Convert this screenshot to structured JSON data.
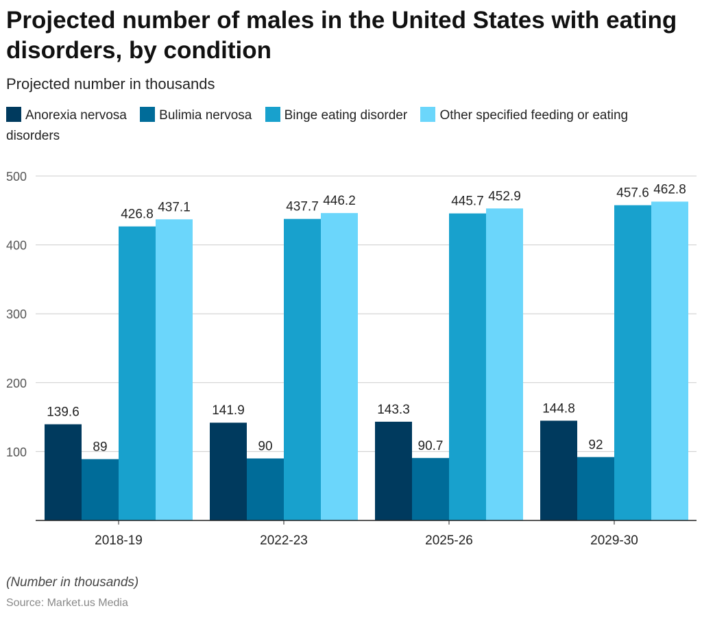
{
  "chart_data": {
    "type": "bar",
    "title": "Projected number of males in the United States with eating disorders, by condition",
    "subtitle": "Projected number in thousands",
    "categories": [
      "2018-19",
      "2022-23",
      "2025-26",
      "2029-30"
    ],
    "series": [
      {
        "name": "Anorexia nervosa",
        "color": "#003a5e",
        "values": [
          139.6,
          141.9,
          143.3,
          144.8
        ]
      },
      {
        "name": "Bulimia nervosa",
        "color": "#006c99",
        "values": [
          89,
          90,
          90.7,
          92
        ]
      },
      {
        "name": "Binge eating disorder",
        "color": "#18a1cd",
        "values": [
          426.8,
          437.7,
          445.7,
          457.6
        ]
      },
      {
        "name": "Other specified feeding or eating disorders",
        "color": "#6bd6fb",
        "values": [
          437.1,
          446.2,
          452.9,
          462.8
        ]
      }
    ],
    "value_labels": [
      [
        "139.6",
        "141.9",
        "143.3",
        "144.8"
      ],
      [
        "89",
        "90",
        "90.7",
        "92"
      ],
      [
        "426.8",
        "437.7",
        "445.7",
        "457.6"
      ],
      [
        "437.1",
        "446.2",
        "452.9",
        "462.8"
      ]
    ],
    "yticks": [
      100,
      200,
      300,
      400,
      500
    ],
    "ylim": [
      0,
      500
    ],
    "grid": true,
    "legend_position": "top-left"
  },
  "footer": {
    "note": "(Number in thousands)",
    "source": "Source: Market.us Media"
  }
}
